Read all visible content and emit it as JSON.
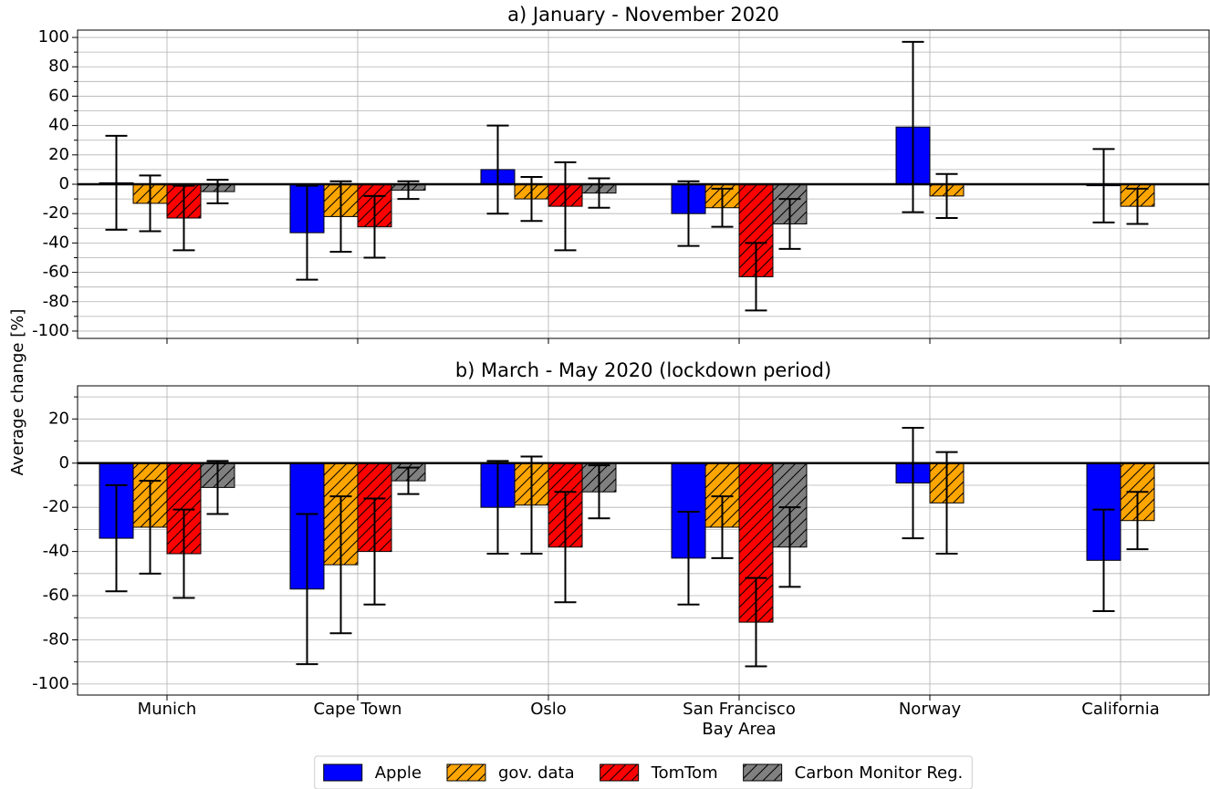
{
  "chart_data": {
    "type": "bar",
    "ylabel": "Average change [%]",
    "categories": [
      "Munich",
      "Cape Town",
      "Oslo",
      "San Francisco\nBay Area",
      "Norway",
      "California"
    ],
    "legend": "lower center",
    "grid": true,
    "series": [
      {
        "name": "Apple",
        "color": "#0000ff",
        "hatch": false
      },
      {
        "name": "gov. data",
        "color": "#ffa500",
        "hatch": true
      },
      {
        "name": "TomTom",
        "color": "#ff0000",
        "hatch": true
      },
      {
        "name": "Carbon Monitor Reg.",
        "color": "#808080",
        "hatch": true
      }
    ],
    "panels": [
      {
        "title": "a) January - November 2020",
        "ylim": [
          -105,
          105
        ],
        "yticks": [
          -100,
          -80,
          -60,
          -40,
          -20,
          0,
          20,
          40,
          60,
          80,
          100
        ],
        "minor_yticks": [
          -90,
          -70,
          -50,
          -30,
          -10,
          10,
          30,
          50,
          70,
          90
        ],
        "values": [
          [
            1,
            -33,
            10,
            -20,
            39,
            -1
          ],
          [
            -13,
            -22,
            -10,
            -16,
            -8,
            -15
          ],
          [
            -23,
            -29,
            -15,
            -63,
            null,
            null
          ],
          [
            -5,
            -4,
            -6,
            -27,
            null,
            null
          ]
        ],
        "errors": [
          [
            32,
            32,
            30,
            22,
            58,
            25
          ],
          [
            19,
            24,
            15,
            13,
            15,
            12
          ],
          [
            22,
            21,
            30,
            23,
            null,
            null
          ],
          [
            8,
            6,
            10,
            17,
            null,
            null
          ]
        ]
      },
      {
        "title": "b) March - May 2020 (lockdown period)",
        "ylim": [
          -105,
          35
        ],
        "yticks": [
          -100,
          -80,
          -60,
          -40,
          -20,
          0,
          20
        ],
        "minor_yticks": [
          -90,
          -70,
          -50,
          -30,
          -10,
          10,
          30
        ],
        "values": [
          [
            -34,
            -57,
            -20,
            -43,
            -9,
            -44
          ],
          [
            -29,
            -46,
            -19,
            -29,
            -18,
            -26
          ],
          [
            -41,
            -40,
            -38,
            -72,
            null,
            null
          ],
          [
            -11,
            -8,
            -13,
            -38,
            null,
            null
          ]
        ],
        "errors": [
          [
            24,
            34,
            21,
            21,
            25,
            23
          ],
          [
            21,
            31,
            22,
            14,
            23,
            13
          ],
          [
            20,
            24,
            25,
            20,
            null,
            null
          ],
          [
            12,
            6,
            12,
            18,
            null,
            null
          ]
        ]
      }
    ]
  }
}
